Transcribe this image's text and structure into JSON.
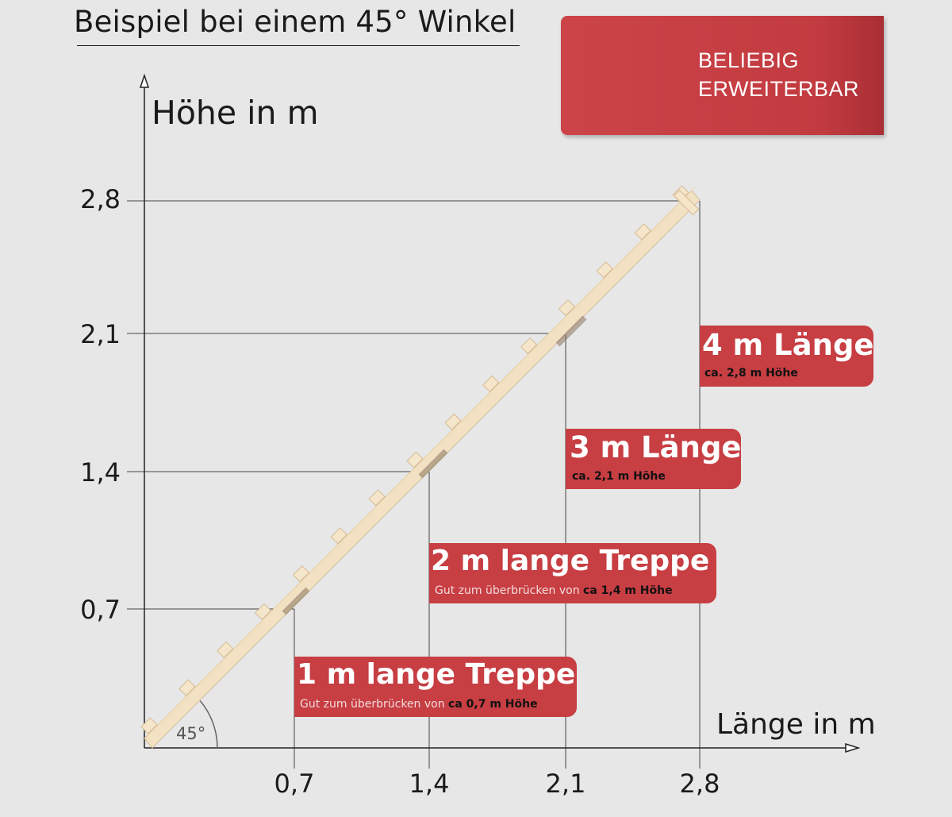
{
  "title": "Beispiel bei einem 45° Winkel",
  "badge": {
    "line1": "BELIEBIG",
    "line2": "ERWEITERBAR",
    "icon": "expand-arrow-icon",
    "color": "#c73e43"
  },
  "axes": {
    "y_label": "Höhe in m",
    "x_label": "Länge in m",
    "y_ticks": [
      "2,8",
      "2,1",
      "1,4",
      "0,7"
    ],
    "x_ticks": [
      "0,7",
      "1,4",
      "2,1",
      "2,8"
    ],
    "angle": "45°"
  },
  "boxes": [
    {
      "title": "1 m lange Treppe",
      "pre": "Gut zum überbrücken von",
      "bold": "ca 0,7 m Höhe"
    },
    {
      "title": "2 m lange Treppe",
      "pre": "Gut zum überbrücken von",
      "bold": "ca 1,4 m Höhe"
    },
    {
      "title": "3 m Länge",
      "pre": "",
      "bold": "ca. 2,1 m Höhe"
    },
    {
      "title": "4 m Länge",
      "pre": "",
      "bold": "ca. 2,8 m Höhe"
    }
  ],
  "colors": {
    "accent": "#c73e43",
    "wood": "#f3e1c4",
    "background": "#e7e7e8"
  }
}
